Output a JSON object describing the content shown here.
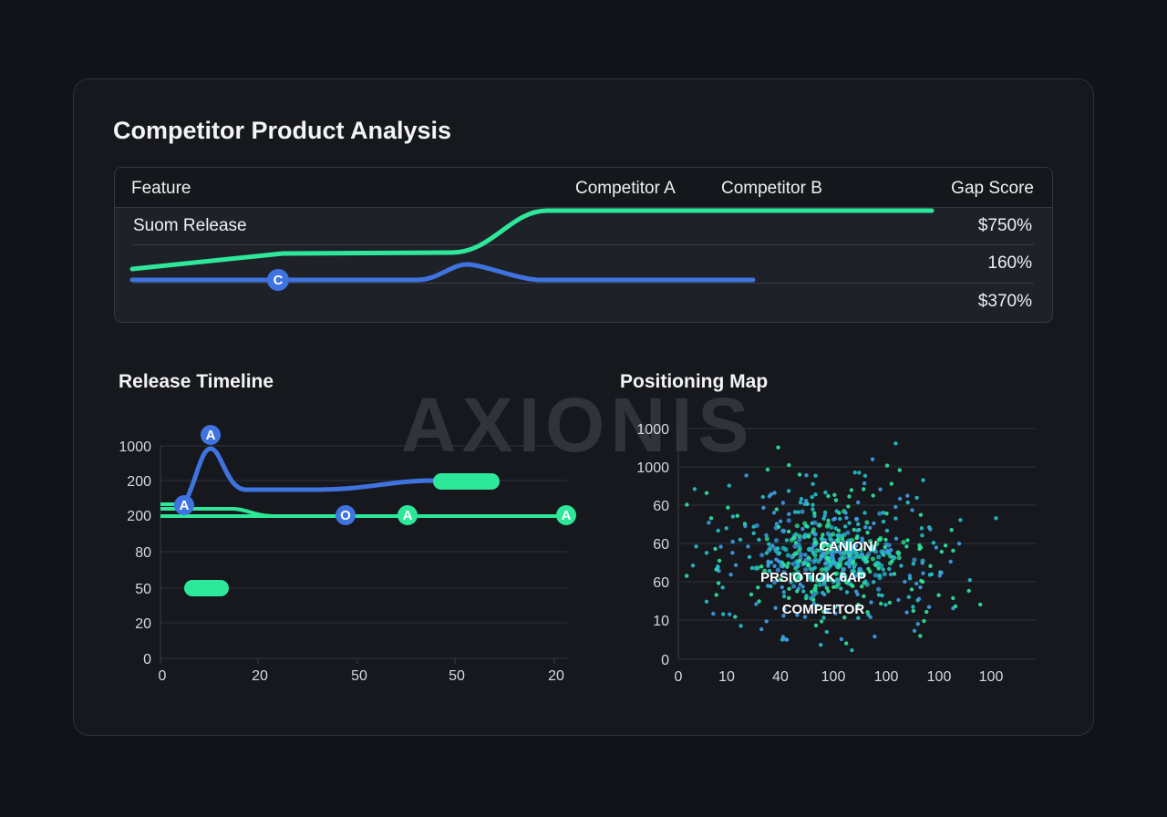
{
  "title": "Competitor Product Analysis",
  "watermark": "AXIONIS",
  "table": {
    "columns": [
      "Feature",
      "Competitor A",
      "Competitor B",
      "Gap Score"
    ],
    "rows": [
      {
        "feature": "Suom Release",
        "gap": "$750%"
      },
      {
        "feature": "",
        "gap": "160%"
      },
      {
        "feature": "",
        "gap": "$370%"
      }
    ],
    "marker_label": "C"
  },
  "colors": {
    "green": "#2ee89a",
    "blue": "#3f74e0",
    "background": "#111318",
    "card": "#16181e"
  },
  "chart_data": [
    {
      "type": "line",
      "title": "Release Timeline",
      "x_tick_labels": [
        "0",
        "20",
        "50",
        "50",
        "20"
      ],
      "y_tick_labels": [
        "1000",
        "200",
        "200",
        "80",
        "50",
        "20",
        "0"
      ],
      "grid": true,
      "series_colors": [
        "#3f74e0",
        "#2ee89a"
      ],
      "markers": [
        {
          "label": "A",
          "color": "#3f74e0"
        },
        {
          "label": "A",
          "color": "#3f74e0"
        },
        {
          "label": "O",
          "color": "#3f74e0"
        },
        {
          "label": "A",
          "color": "#2ee89a"
        },
        {
          "label": "A",
          "color": "#2ee89a"
        }
      ]
    },
    {
      "type": "scatter",
      "title": "Positioning Map",
      "x_tick_labels": [
        "0",
        "10",
        "40",
        "100",
        "100",
        "100",
        "100"
      ],
      "y_tick_labels": [
        "1000",
        "1000",
        "60",
        "60",
        "60",
        "10",
        "0"
      ],
      "grid": true,
      "point_colors": [
        "#2ee89a",
        "#3f9ee8",
        "#22c3c8"
      ],
      "annotations": [
        "CANION/",
        "PRSIOTIOK 6AP",
        "COMPEITOR"
      ]
    }
  ]
}
